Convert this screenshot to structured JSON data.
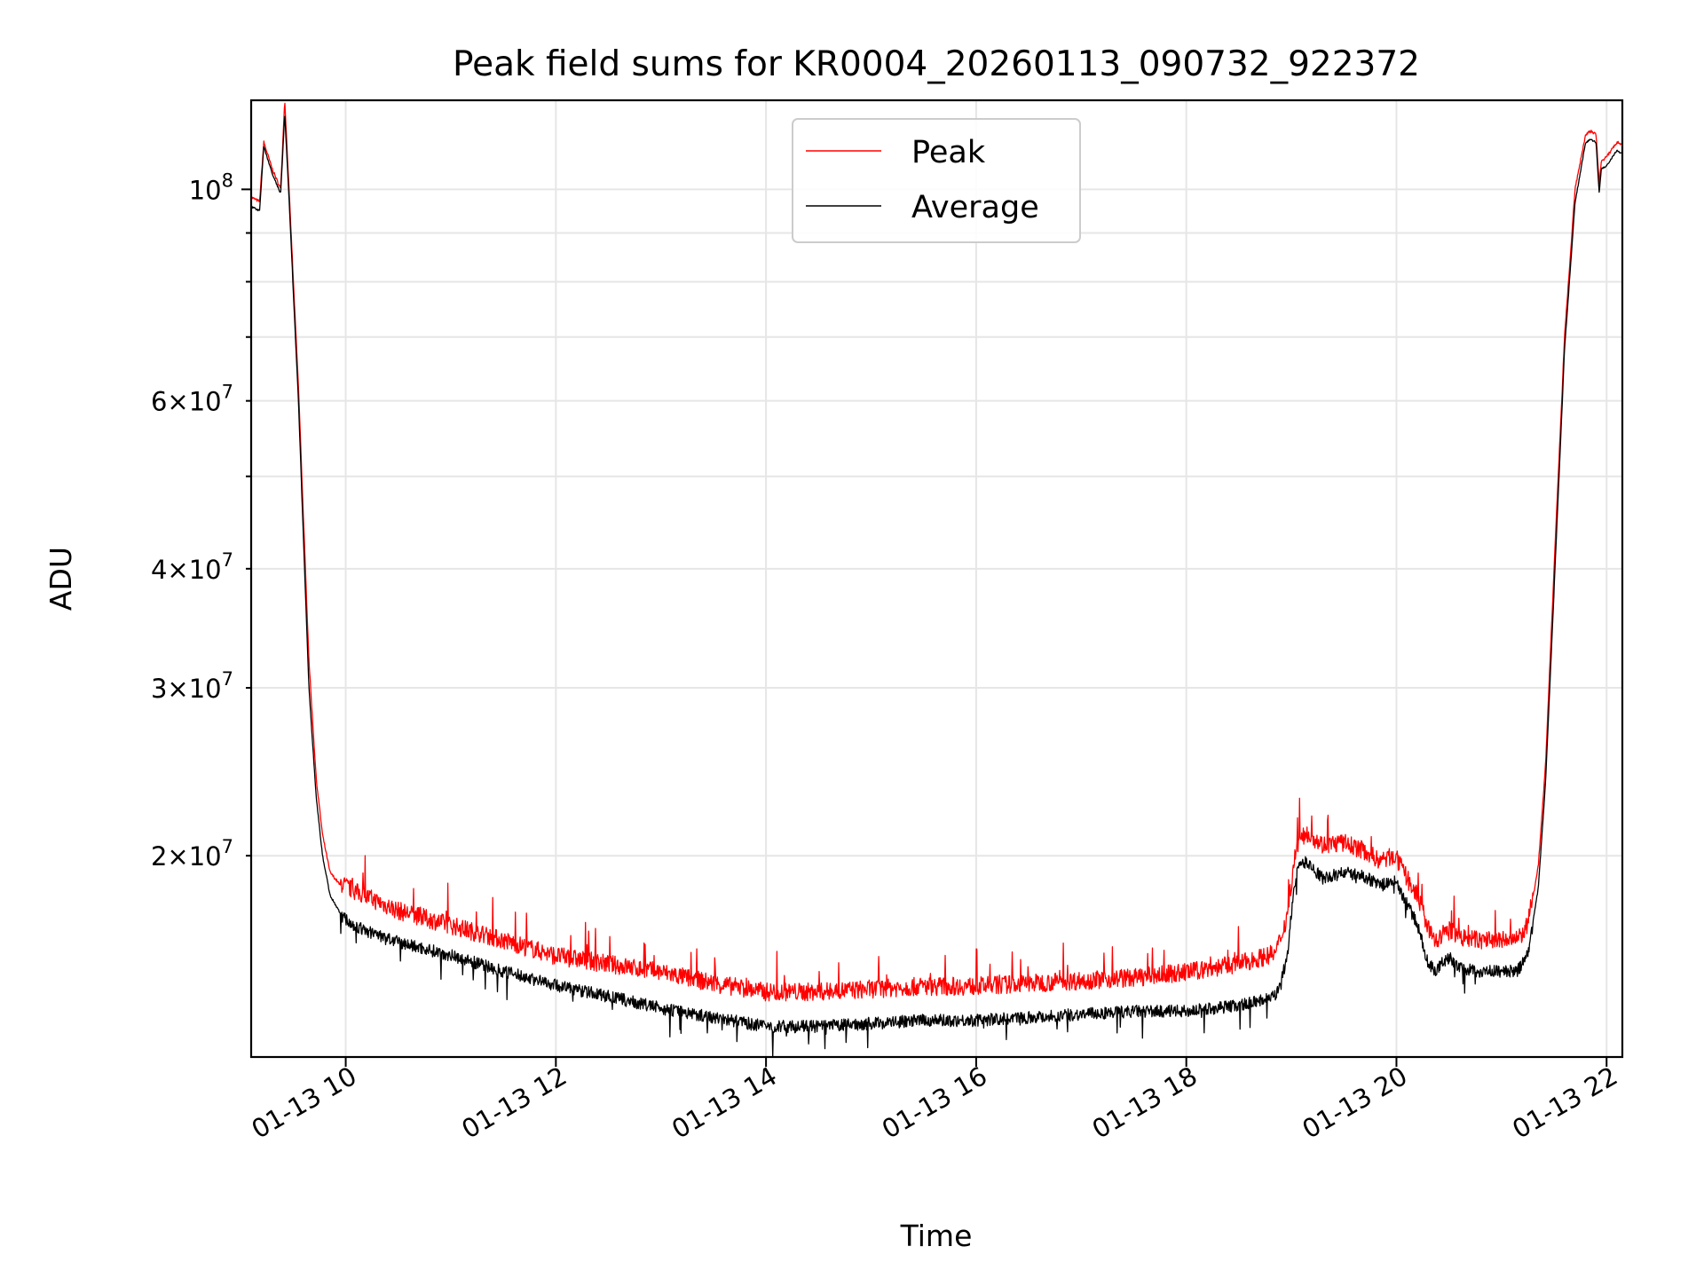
{
  "chart_data": {
    "type": "line",
    "title": "Peak field sums for KR0004_20260113_090732_922372",
    "xlabel": "Time",
    "ylabel": "ADU",
    "yscale": "log",
    "x_unit": "hours (day 01-13)",
    "xlim": [
      9.1,
      22.15
    ],
    "ylim": [
      12300000,
      124000000
    ],
    "grid": true,
    "legend_position": "top-center",
    "x_ticks": [
      {
        "value": 10,
        "label": "01-13 10"
      },
      {
        "value": 12,
        "label": "01-13 12"
      },
      {
        "value": 14,
        "label": "01-13 14"
      },
      {
        "value": 16,
        "label": "01-13 16"
      },
      {
        "value": 18,
        "label": "01-13 18"
      },
      {
        "value": 20,
        "label": "01-13 20"
      },
      {
        "value": 22,
        "label": "01-13 22"
      }
    ],
    "y_major_ticks": [
      {
        "value": 100000000,
        "base": "10",
        "exponent": "8"
      }
    ],
    "y_minor_labeled": [
      {
        "value": 20000000,
        "mantissa": "2",
        "base": "10",
        "exponent": "7"
      },
      {
        "value": 30000000,
        "mantissa": "3",
        "base": "10",
        "exponent": "7"
      },
      {
        "value": 40000000,
        "mantissa": "4",
        "base": "10",
        "exponent": "7"
      },
      {
        "value": 60000000,
        "mantissa": "6",
        "base": "10",
        "exponent": "7"
      }
    ],
    "y_minor_unlabeled": [
      50000000,
      70000000,
      80000000,
      90000000
    ],
    "series": [
      {
        "name": "Peak",
        "color": "#ff0000",
        "x": [
          9.1,
          9.18,
          9.22,
          9.3,
          9.38,
          9.42,
          9.46,
          9.55,
          9.65,
          9.72,
          9.78,
          9.85,
          9.95,
          10.1,
          10.5,
          11.0,
          11.5,
          12.0,
          12.5,
          13.0,
          13.5,
          14.0,
          14.5,
          15.0,
          15.5,
          16.0,
          16.5,
          17.0,
          17.5,
          18.0,
          18.5,
          18.85,
          18.95,
          19.05,
          19.15,
          19.3,
          19.5,
          19.7,
          19.85,
          19.98,
          20.08,
          20.2,
          20.3,
          20.38,
          20.45,
          20.52,
          20.6,
          20.8,
          21.0,
          21.15,
          21.25,
          21.35,
          21.42,
          21.5,
          21.6,
          21.7,
          21.8,
          21.85,
          21.9,
          21.93,
          21.95,
          22.0,
          22.1,
          22.15
        ],
        "y": [
          98000000,
          97000000,
          112000000,
          105000000,
          100000000,
          124000000,
          100000000,
          62000000,
          32000000,
          24000000,
          21000000,
          19200000,
          18600000,
          18200000,
          17400000,
          16800000,
          16200000,
          15600000,
          15300000,
          15000000,
          14600000,
          14300000,
          14300000,
          14400000,
          14500000,
          14500000,
          14600000,
          14700000,
          14800000,
          15000000,
          15300000,
          15700000,
          17000000,
          20400000,
          21000000,
          20400000,
          20500000,
          20100000,
          19600000,
          19900000,
          19000000,
          18000000,
          16700000,
          16100000,
          16500000,
          16600000,
          16300000,
          16200000,
          16200000,
          16200000,
          16800000,
          19500000,
          25000000,
          40000000,
          70000000,
          100000000,
          114000000,
          115000000,
          114000000,
          101000000,
          107000000,
          108000000,
          112000000,
          111000000
        ]
      },
      {
        "name": "Average",
        "color": "#000000",
        "x": [
          9.1,
          9.18,
          9.22,
          9.3,
          9.38,
          9.42,
          9.46,
          9.55,
          9.65,
          9.72,
          9.78,
          9.85,
          9.95,
          10.1,
          10.5,
          11.0,
          11.5,
          12.0,
          12.5,
          13.0,
          13.5,
          14.0,
          14.5,
          15.0,
          15.5,
          16.0,
          16.5,
          17.0,
          17.5,
          18.0,
          18.5,
          18.85,
          18.95,
          19.05,
          19.15,
          19.3,
          19.5,
          19.7,
          19.85,
          19.98,
          20.08,
          20.2,
          20.3,
          20.38,
          20.45,
          20.52,
          20.6,
          20.8,
          21.0,
          21.15,
          21.25,
          21.35,
          21.42,
          21.5,
          21.6,
          21.7,
          21.8,
          21.85,
          21.9,
          21.93,
          21.95,
          22.0,
          22.1,
          22.15
        ],
        "y": [
          96000000,
          95000000,
          111000000,
          104000000,
          99000000,
          120000000,
          98000000,
          60000000,
          30000000,
          23000000,
          20000000,
          18200000,
          17400000,
          16900000,
          16300000,
          15800000,
          15200000,
          14700000,
          14300000,
          13900000,
          13600000,
          13300000,
          13300000,
          13400000,
          13500000,
          13500000,
          13600000,
          13700000,
          13800000,
          13800000,
          14000000,
          14300000,
          15500000,
          19500000,
          19800000,
          19000000,
          19300000,
          19100000,
          18700000,
          18900000,
          18100000,
          17000000,
          15500000,
          15200000,
          15600000,
          15700000,
          15300000,
          15200000,
          15200000,
          15200000,
          15800000,
          18500000,
          24000000,
          38000000,
          68000000,
          97000000,
          112000000,
          113000000,
          112000000,
          99000000,
          105000000,
          106000000,
          110000000,
          109000000
        ]
      }
    ]
  }
}
